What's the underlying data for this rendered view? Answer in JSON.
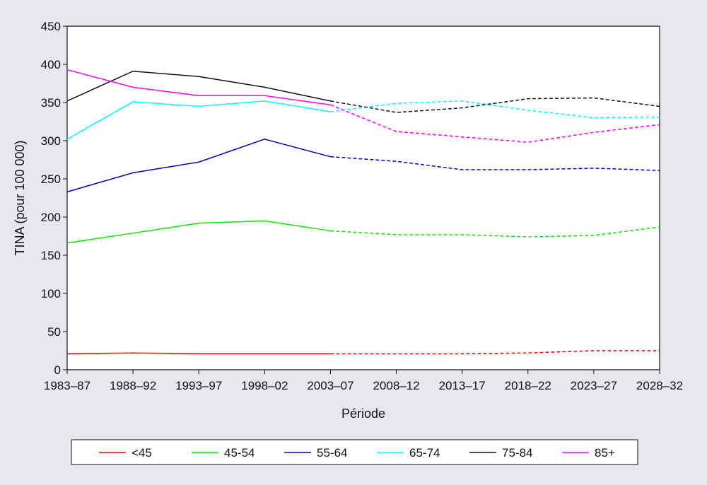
{
  "chart_data": {
    "type": "line",
    "title": "",
    "xlabel": "Période",
    "ylabel": "TINA (pour 100 000)",
    "ylim": [
      0,
      450
    ],
    "yticks": [
      "0",
      "50",
      "100",
      "150",
      "200",
      "250",
      "300",
      "350",
      "400",
      "450"
    ],
    "categories": [
      "1983–87",
      "1988–92",
      "1993–97",
      "1998–02",
      "2003–07",
      "2008–12",
      "2013–17",
      "2018–22",
      "2023–27",
      "2028–32"
    ],
    "observed_through": "2003–07",
    "grid": false,
    "legend_position": "bottom",
    "series": [
      {
        "name": "<45",
        "color": "#ff0000",
        "values": [
          21,
          22,
          21,
          21,
          21,
          21,
          21,
          22,
          25,
          25
        ]
      },
      {
        "name": "45-54",
        "color": "#00ee00",
        "values": [
          166,
          179,
          192,
          195,
          182,
          177,
          177,
          174,
          176,
          187
        ]
      },
      {
        "name": "55-64",
        "color": "#0000cc",
        "values": [
          233,
          258,
          272,
          302,
          279,
          273,
          262,
          262,
          264,
          261
        ]
      },
      {
        "name": "65-74",
        "color": "#00ffff",
        "values": [
          302,
          351,
          345,
          352,
          338,
          349,
          352,
          340,
          330,
          331
        ]
      },
      {
        "name": "75-84",
        "color": "#111111",
        "values": [
          352,
          391,
          384,
          370,
          352,
          337,
          343,
          355,
          356,
          345
        ]
      },
      {
        "name": "85+",
        "color": "#ff00ff",
        "values": [
          393,
          370,
          359,
          359,
          347,
          312,
          305,
          298,
          311,
          321
        ]
      }
    ]
  }
}
